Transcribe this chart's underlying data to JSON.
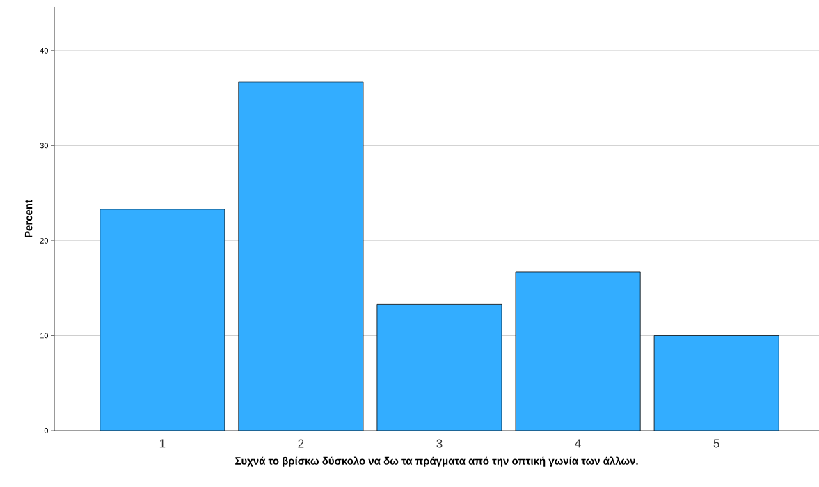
{
  "chart_data": {
    "type": "bar",
    "xlabel": "Συχνά το βρίσκω δύσκολο να δω τα πράγματα από την οπτική γωνία των άλλων.",
    "ylabel": "Percent",
    "categories": [
      "1",
      "2",
      "3",
      "4",
      "5"
    ],
    "values": [
      23.3,
      36.7,
      13.3,
      16.7,
      10.0
    ],
    "color": "#33adff",
    "ylim": [
      0,
      44.6
    ],
    "yticks": [
      0,
      10,
      20,
      30,
      40
    ],
    "grid": "y"
  }
}
